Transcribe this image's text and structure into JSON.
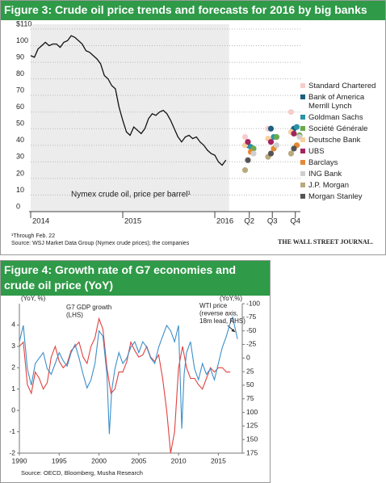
{
  "chart_data": [
    {
      "type": "combo",
      "title": "Figure 3: Crude oil price trends and forecasts for 2016 by big banks",
      "xlim": [
        2014,
        2016.93
      ],
      "xticks": [
        2014,
        2015,
        2016,
        {
          "value": 2016.375,
          "label": "Q2"
        },
        {
          "value": 2016.625,
          "label": "Q3"
        },
        {
          "value": 2016.875,
          "label": "Q4"
        }
      ],
      "ylim": [
        0,
        110
      ],
      "yticks": [
        0,
        10,
        20,
        30,
        40,
        50,
        60,
        70,
        80,
        90,
        100,
        {
          "value": 110,
          "label": "$110"
        }
      ],
      "grid": true,
      "series": [
        {
          "name": "Nymex crude oil, price per barrel¹",
          "type": "line",
          "color": "#111111",
          "x": [
            2014.0,
            2014.04,
            2014.08,
            2014.12,
            2014.16,
            2014.2,
            2014.24,
            2014.28,
            2014.32,
            2014.36,
            2014.4,
            2014.44,
            2014.48,
            2014.52,
            2014.56,
            2014.6,
            2014.64,
            2014.68,
            2014.72,
            2014.76,
            2014.8,
            2014.84,
            2014.88,
            2014.92,
            2014.96,
            2015.0,
            2015.04,
            2015.08,
            2015.12,
            2015.16,
            2015.2,
            2015.24,
            2015.28,
            2015.32,
            2015.36,
            2015.4,
            2015.44,
            2015.48,
            2015.52,
            2015.56,
            2015.6,
            2015.64,
            2015.68,
            2015.72,
            2015.76,
            2015.8,
            2015.84,
            2015.88,
            2015.92,
            2015.96,
            2016.0,
            2016.04,
            2016.08,
            2016.12
          ],
          "values": [
            94,
            93,
            98,
            100,
            102,
            100,
            101,
            101,
            99,
            102,
            103,
            106,
            105,
            103,
            101,
            97,
            96,
            94,
            92,
            89,
            82,
            80,
            76,
            74,
            63,
            55,
            48,
            46,
            51,
            49,
            47,
            50,
            56,
            59,
            58,
            60,
            61,
            59,
            55,
            50,
            45,
            42,
            45,
            46,
            44,
            45,
            42,
            40,
            37,
            35,
            34,
            30,
            28,
            31
          ]
        },
        {
          "name": "Standard Chartered",
          "type": "scatter",
          "color": "#f6cdcb",
          "x": [
            2016.375,
            2016.625,
            2016.875
          ],
          "values": [
            45,
            50,
            60
          ]
        },
        {
          "name": "Bank of America Merrill Lynch",
          "type": "scatter",
          "color": "#1d5f80",
          "x": [
            2016.375,
            2016.625,
            2016.875
          ],
          "values": [
            40,
            50,
            50
          ]
        },
        {
          "name": "Goldman Sachs",
          "type": "scatter",
          "color": "#2b94a6",
          "x": [
            2016.375,
            2016.625,
            2016.875
          ],
          "values": [
            39,
            45,
            51
          ]
        },
        {
          "name": "Société Générale",
          "type": "scatter",
          "color": "#6aaa4a",
          "x": [
            2016.375,
            2016.625,
            2016.875
          ],
          "values": [
            38,
            45,
            46
          ]
        },
        {
          "name": "Deutsche Bank",
          "type": "scatter",
          "color": "#f8cf9e",
          "x": [
            2016.375,
            2016.625,
            2016.875
          ],
          "values": [
            40,
            44,
            48
          ]
        },
        {
          "name": "UBS",
          "type": "scatter",
          "color": "#a3245e",
          "x": [
            2016.375,
            2016.625,
            2016.875
          ],
          "values": [
            42,
            42,
            47
          ]
        },
        {
          "name": "Barclays",
          "type": "scatter",
          "color": "#e48a34",
          "x": [
            2016.375,
            2016.625,
            2016.875
          ],
          "values": [
            36,
            38,
            40
          ]
        },
        {
          "name": "ING Bank",
          "type": "scatter",
          "color": "#cfcfcf",
          "x": [
            2016.375,
            2016.625,
            2016.875
          ],
          "values": [
            35,
            40,
            45
          ]
        },
        {
          "name": "J.P. Morgan",
          "type": "scatter",
          "color": "#b9aa7d",
          "x": [
            2016.375,
            2016.625,
            2016.875
          ],
          "values": [
            25,
            33,
            35
          ]
        },
        {
          "name": "Morgan Stanley",
          "type": "scatter",
          "color": "#555555",
          "x": [
            2016.375,
            2016.625,
            2016.875
          ],
          "values": [
            31,
            35,
            38
          ]
        }
      ],
      "footnote": "¹Through Feb. 22",
      "source": "Source: WSJ Market Data Group (Nymex crude prices); the companies",
      "credit": "THE WALL STREET JOURNAL."
    },
    {
      "type": "line",
      "title": "Figure 4: Growth rate of G7 economies and crude oil price (YoY)",
      "xlim": [
        1990,
        2018
      ],
      "xticks": [
        1990,
        1995,
        2000,
        2005,
        2010,
        2015
      ],
      "ylim": [
        -2,
        5
      ],
      "yticks": [
        -2,
        -1,
        0,
        1,
        2,
        3,
        4
      ],
      "y2lim": [
        175,
        -100
      ],
      "y2ticks": [
        -100,
        -75,
        -50,
        -25,
        0,
        25,
        50,
        75,
        100,
        125,
        150,
        175
      ],
      "ylabel": "(YoY, %)",
      "y2label": "(YoY,%)",
      "series": [
        {
          "color": "#e0423f",
          "x": [
            1990,
            1990.5,
            1991,
            1991.5,
            1992,
            1992.5,
            1993,
            1993.5,
            1994,
            1994.5,
            1995,
            1995.5,
            1996,
            1996.5,
            1997,
            1997.5,
            1998,
            1998.5,
            1999,
            1999.5,
            2000,
            2000.5,
            2001,
            2001.5,
            2002,
            2002.5,
            2003,
            2003.5,
            2004,
            2004.5,
            2005,
            2005.5,
            2006,
            2006.5,
            2007,
            2007.5,
            2008,
            2008.5,
            2009,
            2009.5,
            2010,
            2010.5,
            2011,
            2011.5,
            2012,
            2012.5,
            2013,
            2013.5,
            2014,
            2014.5,
            2015,
            2015.5,
            2016,
            2016.5
          ],
          "values": [
            3.0,
            3.2,
            1.2,
            0.8,
            1.8,
            1.5,
            1.0,
            1.3,
            2.5,
            3.0,
            2.3,
            2.0,
            2.2,
            2.8,
            3.0,
            3.2,
            2.5,
            2.2,
            3.0,
            3.4,
            4.3,
            3.8,
            2.0,
            0.8,
            1.0,
            1.8,
            1.8,
            2.3,
            3.2,
            2.8,
            2.5,
            2.6,
            3.0,
            2.5,
            2.3,
            2.6,
            1.5,
            0.0,
            -2.0,
            -1.0,
            2.0,
            3.0,
            2.0,
            1.5,
            1.5,
            1.2,
            1.0,
            1.5,
            2.0,
            1.8,
            2.0,
            2.0,
            1.8,
            1.8
          ]
        },
        {
          "color": "#3b8fc9",
          "axis": "y2",
          "x": [
            1990,
            1990.5,
            1991,
            1991.5,
            1992,
            1992.5,
            1993,
            1993.5,
            1994,
            1994.5,
            1995,
            1995.5,
            1996,
            1996.5,
            1997,
            1997.5,
            1998,
            1998.5,
            1999,
            1999.5,
            2000,
            2000.5,
            2001,
            2001.3,
            2001.6,
            2002,
            2002.5,
            2003,
            2003.5,
            2004,
            2004.5,
            2005,
            2005.5,
            2006,
            2006.5,
            2007,
            2007.5,
            2008,
            2008.5,
            2009,
            2009.5,
            2010,
            2010.4,
            2010.7,
            2011,
            2011.5,
            2012,
            2012.5,
            2013,
            2013.5,
            2014,
            2014.5,
            2015,
            2015.5,
            2016,
            2016.5,
            2016.8,
            2017.1,
            2017.4
          ],
          "values": [
            -30,
            -60,
            20,
            50,
            10,
            0,
            -10,
            20,
            30,
            10,
            -10,
            5,
            15,
            -10,
            -25,
            0,
            30,
            55,
            40,
            10,
            -50,
            -40,
            30,
            140,
            60,
            20,
            -10,
            10,
            0,
            -20,
            -30,
            -10,
            -30,
            -20,
            0,
            10,
            -20,
            -40,
            -60,
            -50,
            -30,
            -60,
            130,
            30,
            -10,
            -30,
            20,
            40,
            10,
            30,
            20,
            40,
            10,
            -20,
            -40,
            -65,
            -75,
            -55,
            -35
          ]
        }
      ],
      "annotations": [
        {
          "lines": [
            "G7 GDP growth",
            "(LHS)"
          ]
        },
        {
          "lines": [
            "WTI price",
            "(reverse axis,",
            "18m lead, RHS)"
          ]
        }
      ],
      "source": "Source: OECD, Bloomberg, Musha Research"
    }
  ]
}
